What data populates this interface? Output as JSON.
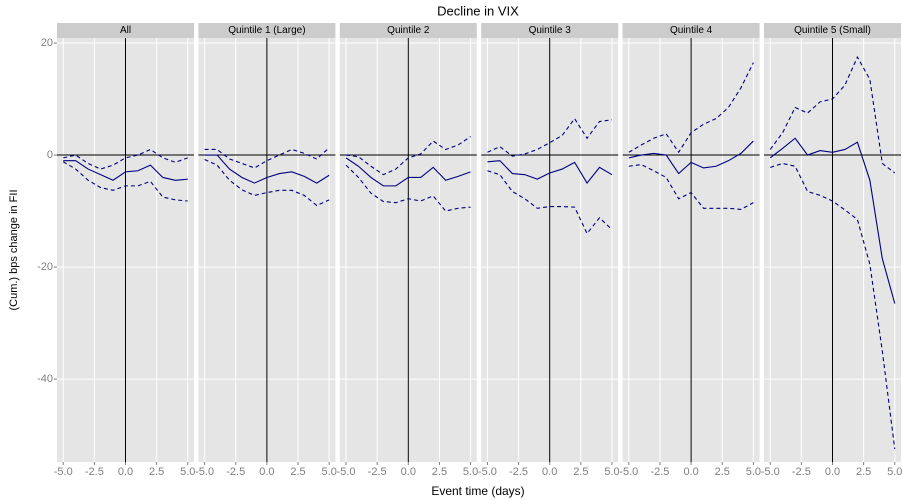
{
  "chart_data": {
    "type": "line",
    "title": "Decline in VIX",
    "x_label": "Event time (days)",
    "y_label": "(Cum.) bps change in FII",
    "xlim": [
      -5.5,
      5.5
    ],
    "ylim": [
      -54.8,
      20.9
    ],
    "xticks": [
      {
        "value": -5,
        "label": "-5.0"
      },
      {
        "value": -2.5,
        "label": "-2.5"
      },
      {
        "value": 0,
        "label": "0.0"
      },
      {
        "value": 2.5,
        "label": "2.5"
      },
      {
        "value": 5,
        "label": "5.0"
      }
    ],
    "yticks": [
      -40,
      -20,
      0,
      20
    ],
    "grid": true,
    "reference_lines": {
      "x": 0,
      "y": 0
    },
    "x": [
      -5,
      -4,
      -3,
      -2,
      -1,
      0,
      1,
      2,
      3,
      4,
      5
    ],
    "panels": [
      {
        "title": "All",
        "series": [
          {
            "color": "#000080",
            "linestyle": "solid",
            "values": [
              -1,
              -1,
              -2.5,
              -3.5,
              -4.5,
              -3,
              -2.8,
              -1.8,
              -4,
              -4.5,
              -4.3
            ]
          },
          {
            "color": "#000080",
            "linestyle": "dashed",
            "values": [
              -0.5,
              0,
              -1.5,
              -2.5,
              -1.8,
              -0.5,
              0,
              1,
              -0.5,
              -1.3,
              -0.5
            ]
          },
          {
            "color": "#000080",
            "linestyle": "dashed",
            "values": [
              -1.2,
              -2.5,
              -4.5,
              -5.8,
              -6.3,
              -5.5,
              -5.5,
              -4.7,
              -7.5,
              -8,
              -8.2
            ]
          }
        ]
      },
      {
        "title": "Quintile 1 (Large)",
        "series": [
          {
            "color": "#000080",
            "linestyle": "solid",
            "values": [
              0,
              0,
              -2.5,
              -4,
              -5,
              -4,
              -3.3,
              -3,
              -3.8,
              -5,
              -3.6
            ]
          },
          {
            "color": "#000080",
            "linestyle": "dashed",
            "values": [
              1,
              1,
              -0.7,
              -1.5,
              -2.3,
              -1,
              0,
              1,
              0.3,
              -0.7,
              1.3
            ]
          },
          {
            "color": "#000080",
            "linestyle": "dashed",
            "values": [
              -0.8,
              -1.8,
              -4.5,
              -6.2,
              -7.2,
              -6.7,
              -6.3,
              -6.3,
              -7.2,
              -9,
              -8
            ]
          }
        ]
      },
      {
        "title": "Quintile 2",
        "series": [
          {
            "color": "#000080",
            "linestyle": "solid",
            "values": [
              -0.5,
              -2,
              -4,
              -5.5,
              -5.5,
              -4,
              -4,
              -2.2,
              -4.5,
              -3.8,
              -3
            ]
          },
          {
            "color": "#000080",
            "linestyle": "dashed",
            "values": [
              0,
              -0.3,
              -2,
              -3.5,
              -2.5,
              -0.5,
              0.2,
              2.5,
              1,
              1.8,
              3.3
            ]
          },
          {
            "color": "#000080",
            "linestyle": "dashed",
            "values": [
              -1.8,
              -4,
              -6.8,
              -8.3,
              -8.5,
              -7.8,
              -8.2,
              -7.3,
              -10,
              -9.5,
              -9.3
            ]
          }
        ]
      },
      {
        "title": "Quintile 3",
        "series": [
          {
            "color": "#000080",
            "linestyle": "solid",
            "values": [
              -1.2,
              -1,
              -3.3,
              -3.5,
              -4.3,
              -3.2,
              -2.5,
              -1.3,
              -5,
              -2.2,
              -3.5
            ]
          },
          {
            "color": "#000080",
            "linestyle": "dashed",
            "values": [
              0.5,
              1.5,
              -0.2,
              0.2,
              1,
              2.2,
              3.5,
              6.5,
              3,
              6,
              6.3
            ]
          },
          {
            "color": "#000080",
            "linestyle": "dashed",
            "values": [
              -2.8,
              -3.5,
              -6.5,
              -7.8,
              -9.5,
              -9.2,
              -9.2,
              -9.3,
              -14,
              -11.2,
              -13.3
            ]
          }
        ]
      },
      {
        "title": "Quintile 4",
        "series": [
          {
            "color": "#000080",
            "linestyle": "solid",
            "values": [
              -0.5,
              0,
              0.3,
              0,
              -3.3,
              -1.3,
              -2.3,
              -2,
              -1,
              0.3,
              2.5
            ]
          },
          {
            "color": "#000080",
            "linestyle": "dashed",
            "values": [
              0.5,
              1.8,
              3,
              3.8,
              0.5,
              4,
              5.5,
              6.5,
              8.5,
              12,
              16.5
            ]
          },
          {
            "color": "#000080",
            "linestyle": "dashed",
            "values": [
              -2,
              -1.7,
              -2.8,
              -4,
              -7.8,
              -6.7,
              -9.5,
              -9.5,
              -9.5,
              -9.7,
              -8.5
            ]
          }
        ]
      },
      {
        "title": "Quintile 5 (Small)",
        "series": [
          {
            "color": "#000080",
            "linestyle": "solid",
            "values": [
              -0.5,
              1.2,
              3,
              0,
              0.8,
              0.5,
              1,
              2.3,
              -4.5,
              -18.5,
              -26.5
            ]
          },
          {
            "color": "#000080",
            "linestyle": "dashed",
            "values": [
              1,
              4,
              8.5,
              7.5,
              9.5,
              10,
              12.5,
              17.5,
              13.5,
              -1.5,
              -3.2
            ]
          },
          {
            "color": "#000080",
            "linestyle": "dashed",
            "values": [
              -2.2,
              -1.5,
              -2,
              -6.5,
              -7.2,
              -8.2,
              -9.8,
              -11.5,
              -19.5,
              -35,
              -52.5
            ]
          }
        ]
      }
    ]
  }
}
